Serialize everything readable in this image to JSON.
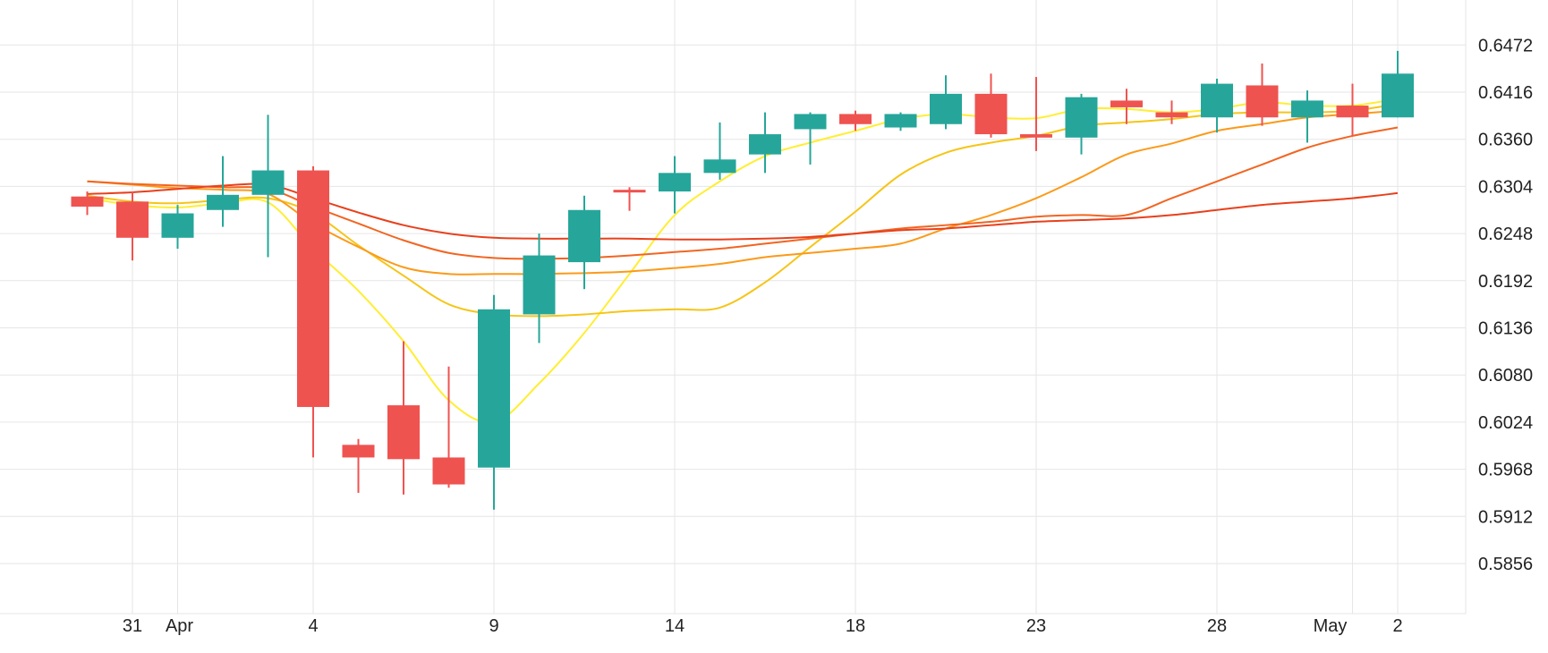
{
  "chart_data": {
    "type": "candlestick",
    "title": "",
    "xlabel": "",
    "ylabel": "",
    "ylim": [
      0.58,
      0.6528
    ],
    "grid": true,
    "colors": {
      "up": "#26a69a",
      "down": "#ef5350",
      "grid": "#e6e6e6"
    },
    "y_ticks": [
      "0.6472",
      "0.6416",
      "0.6360",
      "0.6304",
      "0.6248",
      "0.6192",
      "0.6136",
      "0.6080",
      "0.6024",
      "0.5968",
      "0.5912",
      "0.5856"
    ],
    "x_ticks": [
      {
        "day": 1,
        "label": "31"
      },
      {
        "day": 2,
        "label": "Apr"
      },
      {
        "day": 5,
        "label": "4"
      },
      {
        "day": 9,
        "label": "9"
      },
      {
        "day": 13,
        "label": "14"
      },
      {
        "day": 17,
        "label": "18"
      },
      {
        "day": 21,
        "label": "23"
      },
      {
        "day": 25,
        "label": "28"
      },
      {
        "day": 28,
        "label": "May"
      },
      {
        "day": 29,
        "label": "2"
      }
    ],
    "candles": [
      {
        "day": 0,
        "open": 0.6292,
        "high": 0.6298,
        "low": 0.627,
        "close": 0.628
      },
      {
        "day": 1,
        "open": 0.6286,
        "high": 0.6298,
        "low": 0.6216,
        "close": 0.6243
      },
      {
        "day": 2,
        "open": 0.6243,
        "high": 0.6282,
        "low": 0.623,
        "close": 0.6272
      },
      {
        "day": 3,
        "open": 0.6276,
        "high": 0.634,
        "low": 0.6256,
        "close": 0.6294
      },
      {
        "day": 4,
        "open": 0.6294,
        "high": 0.6389,
        "low": 0.622,
        "close": 0.6323
      },
      {
        "day": 5,
        "open": 0.6323,
        "high": 0.6328,
        "low": 0.5982,
        "close": 0.6042
      },
      {
        "day": 6,
        "open": 0.5997,
        "high": 0.6004,
        "low": 0.594,
        "close": 0.5982
      },
      {
        "day": 7,
        "open": 0.6044,
        "high": 0.612,
        "low": 0.5938,
        "close": 0.598
      },
      {
        "day": 8,
        "open": 0.5982,
        "high": 0.609,
        "low": 0.5946,
        "close": 0.595
      },
      {
        "day": 9,
        "open": 0.597,
        "high": 0.6175,
        "low": 0.592,
        "close": 0.6158
      },
      {
        "day": 10,
        "open": 0.6152,
        "high": 0.6248,
        "low": 0.6118,
        "close": 0.6222
      },
      {
        "day": 11,
        "open": 0.6214,
        "high": 0.6293,
        "low": 0.6182,
        "close": 0.6276
      },
      {
        "day": 12,
        "open": 0.63,
        "high": 0.6303,
        "low": 0.6275,
        "close": 0.6298
      },
      {
        "day": 13,
        "open": 0.6298,
        "high": 0.634,
        "low": 0.6272,
        "close": 0.632
      },
      {
        "day": 14,
        "open": 0.632,
        "high": 0.638,
        "low": 0.6312,
        "close": 0.6336
      },
      {
        "day": 15,
        "open": 0.6342,
        "high": 0.6392,
        "low": 0.632,
        "close": 0.6366
      },
      {
        "day": 16,
        "open": 0.6372,
        "high": 0.6392,
        "low": 0.633,
        "close": 0.639
      },
      {
        "day": 17,
        "open": 0.639,
        "high": 0.6394,
        "low": 0.637,
        "close": 0.6378
      },
      {
        "day": 18,
        "open": 0.6374,
        "high": 0.6392,
        "low": 0.637,
        "close": 0.639
      },
      {
        "day": 19,
        "open": 0.6378,
        "high": 0.6436,
        "low": 0.6372,
        "close": 0.6414
      },
      {
        "day": 20,
        "open": 0.6414,
        "high": 0.6438,
        "low": 0.6362,
        "close": 0.6366
      },
      {
        "day": 21,
        "open": 0.6366,
        "high": 0.6434,
        "low": 0.6346,
        "close": 0.6362
      },
      {
        "day": 22,
        "open": 0.6362,
        "high": 0.6414,
        "low": 0.6342,
        "close": 0.641
      },
      {
        "day": 23,
        "open": 0.6406,
        "high": 0.642,
        "low": 0.6378,
        "close": 0.6398
      },
      {
        "day": 24,
        "open": 0.6392,
        "high": 0.6406,
        "low": 0.6378,
        "close": 0.6386
      },
      {
        "day": 25,
        "open": 0.6386,
        "high": 0.6432,
        "low": 0.6368,
        "close": 0.6426
      },
      {
        "day": 26,
        "open": 0.6424,
        "high": 0.645,
        "low": 0.6376,
        "close": 0.6386
      },
      {
        "day": 27,
        "open": 0.6386,
        "high": 0.6418,
        "low": 0.6356,
        "close": 0.6406
      },
      {
        "day": 28,
        "open": 0.64,
        "high": 0.6426,
        "low": 0.6364,
        "close": 0.6386
      },
      {
        "day": 29,
        "open": 0.6386,
        "high": 0.6465,
        "low": 0.6386,
        "close": 0.6438
      }
    ],
    "series": [
      {
        "color": "#ffee33",
        "values": [
          0.629,
          0.6282,
          0.6279,
          0.6284,
          0.6285,
          0.623,
          0.618,
          0.612,
          0.605,
          0.6024,
          0.607,
          0.613,
          0.62,
          0.627,
          0.631,
          0.634,
          0.6356,
          0.637,
          0.6384,
          0.639,
          0.6386,
          0.6385,
          0.6396,
          0.6396,
          0.6392,
          0.6396,
          0.6404,
          0.64,
          0.64,
          0.6408
        ]
      },
      {
        "color": "#f5c518",
        "values": [
          0.6293,
          0.6286,
          0.6284,
          0.6288,
          0.629,
          0.6272,
          0.6234,
          0.6198,
          0.6164,
          0.6152,
          0.615,
          0.6152,
          0.6156,
          0.6158,
          0.616,
          0.619,
          0.6232,
          0.6274,
          0.6318,
          0.6344,
          0.6356,
          0.6364,
          0.6376,
          0.638,
          0.6384,
          0.639,
          0.6392,
          0.6392,
          0.6394,
          0.6402
        ]
      },
      {
        "color": "#fb9a1a",
        "values": [
          0.631,
          0.6306,
          0.6302,
          0.63,
          0.6295,
          0.626,
          0.6232,
          0.6208,
          0.62,
          0.62,
          0.62,
          0.6201,
          0.6203,
          0.6207,
          0.6212,
          0.622,
          0.6225,
          0.623,
          0.6236,
          0.6254,
          0.627,
          0.629,
          0.6315,
          0.6342,
          0.6355,
          0.637,
          0.6378,
          0.6386,
          0.639,
          0.6394
        ]
      },
      {
        "color": "#f26522",
        "values": [
          0.631,
          0.6307,
          0.6305,
          0.6303,
          0.6301,
          0.628,
          0.626,
          0.624,
          0.6225,
          0.6219,
          0.6218,
          0.6219,
          0.6222,
          0.6226,
          0.623,
          0.6236,
          0.6242,
          0.6248,
          0.6254,
          0.6258,
          0.6262,
          0.6268,
          0.627,
          0.627,
          0.629,
          0.631,
          0.633,
          0.635,
          0.6364,
          0.6374
        ]
      },
      {
        "color": "#e8401c",
        "values": [
          0.6295,
          0.6297,
          0.6301,
          0.6305,
          0.6306,
          0.629,
          0.6273,
          0.6258,
          0.6248,
          0.6243,
          0.6242,
          0.6242,
          0.6242,
          0.6241,
          0.6241,
          0.6242,
          0.6244,
          0.6248,
          0.6252,
          0.6254,
          0.6258,
          0.6262,
          0.6264,
          0.6266,
          0.627,
          0.6276,
          0.6282,
          0.6286,
          0.629,
          0.6296
        ]
      }
    ]
  }
}
